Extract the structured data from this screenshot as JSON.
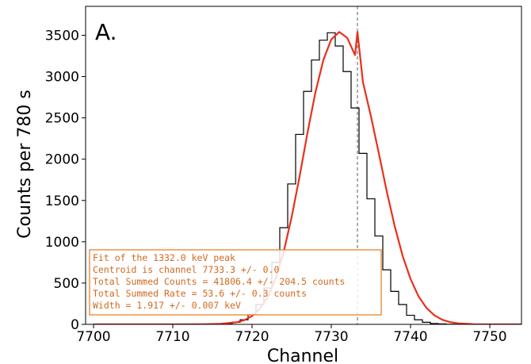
{
  "chart_data": {
    "type": "line",
    "panel_label": "A.",
    "xlabel": "Channel",
    "ylabel": "Counts per 780 s",
    "xlim": [
      7699,
      7754
    ],
    "ylim": [
      0,
      3850
    ],
    "xticks": [
      7700,
      7710,
      7720,
      7730,
      7740,
      7750
    ],
    "yticks": [
      0,
      500,
      1000,
      1500,
      2000,
      2500,
      3000,
      3500
    ],
    "grid": false,
    "centroid_marker": 7733.3,
    "series": [
      {
        "style": "step",
        "color": "#000000",
        "x": [
          7716,
          7717,
          7718,
          7719,
          7720,
          7721,
          7722,
          7723,
          7724,
          7725,
          7726,
          7727,
          7728,
          7729,
          7730,
          7731,
          7732,
          7733,
          7734,
          7735,
          7736,
          7737,
          7738,
          7739,
          7740,
          7741,
          7742,
          7743,
          7744,
          7745,
          7746,
          7747,
          7748,
          7749,
          7750
        ],
        "y": [
          5,
          10,
          25,
          55,
          120,
          240,
          440,
          750,
          1170,
          1700,
          2300,
          2820,
          3200,
          3440,
          3530,
          3370,
          3060,
          2620,
          2070,
          1520,
          1070,
          660,
          400,
          240,
          110,
          55,
          25,
          10,
          5,
          2,
          1,
          0,
          0,
          0,
          0
        ]
      },
      {
        "style": "line",
        "color": "#e8301c",
        "x": [
          7700,
          7705,
          7710,
          7714,
          7716,
          7718,
          7719,
          7720,
          7721,
          7722,
          7723,
          7724,
          7725,
          7726,
          7727,
          7728,
          7729,
          7730,
          7731,
          7732,
          7733,
          7733.3,
          7734,
          7735,
          7736,
          7737,
          7738,
          7739,
          7740,
          7741,
          7742,
          7743,
          7744,
          7745,
          7746,
          7748,
          7750,
          7754
        ],
        "y": [
          0,
          0,
          0,
          2,
          6,
          25,
          50,
          100,
          190,
          330,
          560,
          880,
          1300,
          1790,
          2320,
          2810,
          3200,
          3450,
          3540,
          3470,
          3260,
          3540,
          2930,
          2520,
          2070,
          1610,
          1190,
          830,
          550,
          340,
          200,
          110,
          56,
          27,
          12,
          2,
          0,
          0
        ]
      }
    ],
    "info_box": [
      "Fit of the  1332.0 keV peak",
      "Centroid is channel 7733.3 +/- 0.0",
      "Total Summed Counts = 41806.4 +/- 204.5 counts",
      "Total Summed Rate = 53.6 +/- 0.3 counts",
      "Width = 1.917 +/- 0.007 keV"
    ],
    "colors": {
      "box_border": "#e8832a",
      "box_text": "#d2691e",
      "centroid_line": "#777777"
    }
  }
}
